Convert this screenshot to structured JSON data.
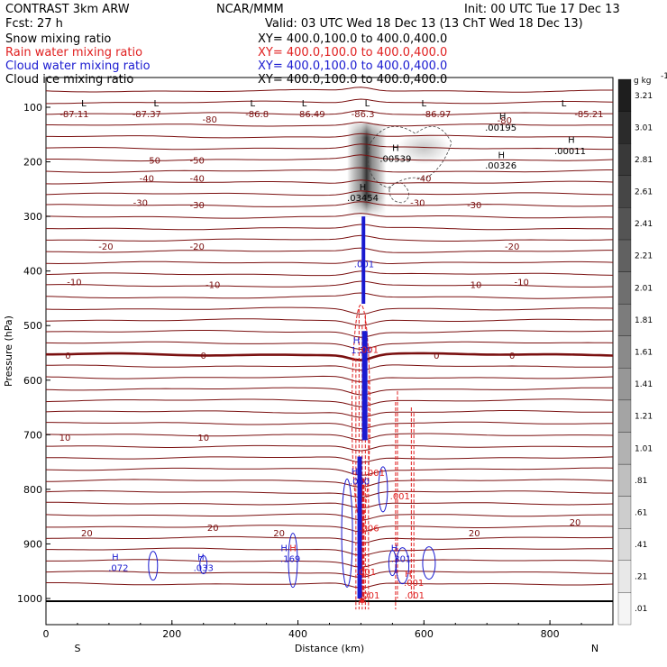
{
  "header": {
    "left_line1": "CONTRAST  3km ARW",
    "center_line1": "NCAR/MMM",
    "right_line1": "Init: 00 UTC Tue 17 Dec 13",
    "left_line2": "Fcst:    27 h",
    "right_line2": "Valid: 03 UTC Wed 18 Dec 13 (13 ChT Wed 18 Dec 13)",
    "fields": [
      {
        "name": "Snow mixing ratio",
        "xy": "XY= 400.0,100.0 to 400.0,400.0",
        "color": "#000000"
      },
      {
        "name": "Rain water mixing ratio",
        "xy": "XY= 400.0,100.0 to 400.0,400.0",
        "color": "#e02020"
      },
      {
        "name": "Cloud water mixing ratio",
        "xy": "XY= 400.0,100.0 to 400.0,400.0",
        "color": "#1a1ad0"
      },
      {
        "name": "Cloud ice mixing ratio",
        "xy": "XY= 400.0,100.0 to 400.0,400.0",
        "color": "#000000"
      }
    ]
  },
  "chart_data": {
    "type": "cross-section",
    "xlabel": "Distance (km)",
    "ylabel": "Pressure (hPa)",
    "xlim": [
      0,
      900
    ],
    "ylim": [
      1050,
      40
    ],
    "x_ticks": [
      0,
      200,
      400,
      600,
      800
    ],
    "y_ticks": [
      100,
      200,
      300,
      400,
      500,
      600,
      700,
      800,
      900,
      1000
    ],
    "x_end_labels": {
      "left": "S",
      "right": "N"
    },
    "colorbar": {
      "unit": "g kg",
      "unit_exp": "-1",
      "levels": [
        ".01",
        ".21",
        ".41",
        ".61",
        ".81",
        "1.01",
        "1.21",
        "1.41",
        "1.61",
        "1.81",
        "2.01",
        "2.21",
        "2.41",
        "2.61",
        "2.81",
        "3.01",
        "3.21"
      ]
    },
    "temperature_labels": [
      {
        "text": "-87.11",
        "x": 45,
        "p": 118
      },
      {
        "text": "-87.37",
        "x": 160,
        "p": 118
      },
      {
        "text": "-86.8",
        "x": 335,
        "p": 118
      },
      {
        "text": "-86.49",
        "x": 420,
        "p": 118
      },
      {
        "text": "-86.3",
        "x": 503,
        "p": 118
      },
      {
        "text": "-86.97",
        "x": 620,
        "p": 118
      },
      {
        "text": "-85.21",
        "x": 862,
        "p": 118
      },
      {
        "text": "-80",
        "x": 260,
        "p": 128
      },
      {
        "text": "-80",
        "x": 728,
        "p": 130
      },
      {
        "text": "-50",
        "x": 170,
        "p": 203
      },
      {
        "text": "-50",
        "x": 240,
        "p": 203
      },
      {
        "text": "-40",
        "x": 160,
        "p": 236
      },
      {
        "text": "-40",
        "x": 240,
        "p": 236
      },
      {
        "text": "-40",
        "x": 600,
        "p": 236
      },
      {
        "text": "-30",
        "x": 150,
        "p": 281
      },
      {
        "text": "-30",
        "x": 240,
        "p": 285
      },
      {
        "text": "-30",
        "x": 590,
        "p": 281
      },
      {
        "text": "-30",
        "x": 680,
        "p": 285
      },
      {
        "text": "-20",
        "x": 95,
        "p": 361
      },
      {
        "text": "-20",
        "x": 240,
        "p": 361
      },
      {
        "text": "-20",
        "x": 740,
        "p": 361
      },
      {
        "text": "-10",
        "x": 45,
        "p": 426
      },
      {
        "text": "-10",
        "x": 265,
        "p": 431
      },
      {
        "text": "-10",
        "x": 680,
        "p": 431
      },
      {
        "text": "-10",
        "x": 755,
        "p": 426
      },
      {
        "text": "0",
        "x": 35,
        "p": 561
      },
      {
        "text": "0",
        "x": 250,
        "p": 561
      },
      {
        "text": "0",
        "x": 620,
        "p": 561
      },
      {
        "text": "0",
        "x": 740,
        "p": 561
      },
      {
        "text": "10",
        "x": 30,
        "p": 711
      },
      {
        "text": "10",
        "x": 250,
        "p": 711
      },
      {
        "text": "20",
        "x": 65,
        "p": 886
      },
      {
        "text": "20",
        "x": 265,
        "p": 876
      },
      {
        "text": "20",
        "x": 370,
        "p": 886
      },
      {
        "text": "20",
        "x": 680,
        "p": 886
      },
      {
        "text": "20",
        "x": 840,
        "p": 866
      }
    ],
    "extrema_markers": [
      {
        "kind": "L",
        "x": 60,
        "p": 98
      },
      {
        "kind": "L",
        "x": 175,
        "p": 98
      },
      {
        "kind": "L",
        "x": 328,
        "p": 98
      },
      {
        "kind": "L",
        "x": 410,
        "p": 98
      },
      {
        "kind": "L",
        "x": 510,
        "p": 98
      },
      {
        "kind": "L",
        "x": 600,
        "p": 98
      },
      {
        "kind": "L",
        "x": 822,
        "p": 98
      },
      {
        "kind": "H",
        "x": 725,
        "p": 122
      },
      {
        "kind": "H",
        "x": 834,
        "p": 165
      },
      {
        "kind": "H",
        "x": 555,
        "p": 180
      },
      {
        "kind": "H",
        "x": 723,
        "p": 193
      },
      {
        "kind": "H",
        "x": 503,
        "p": 252
      }
    ],
    "snow_maxima": [
      {
        "text": ".00195",
        "x": 722,
        "p": 143
      },
      {
        "text": ".00011",
        "x": 832,
        "p": 186
      },
      {
        "text": ".00539",
        "x": 555,
        "p": 200
      },
      {
        "text": ".00326",
        "x": 722,
        "p": 212
      },
      {
        "text": ".03454",
        "x": 503,
        "p": 272
      }
    ],
    "cloud_water_labels": [
      {
        "text": "H",
        "x": 110,
        "p": 930
      },
      {
        "text": ".072",
        "x": 115,
        "p": 950
      },
      {
        "text": "H",
        "x": 246,
        "p": 930
      },
      {
        "text": ".033",
        "x": 250,
        "p": 950
      },
      {
        "text": "H",
        "x": 378,
        "p": 913
      },
      {
        "text": ".169",
        "x": 388,
        "p": 933
      },
      {
        "text": ".001",
        "x": 505,
        "p": 393
      },
      {
        "text": "H",
        "x": 493,
        "p": 533
      },
      {
        "text": "1.28",
        "x": 500,
        "p": 551
      },
      {
        "text": "H",
        "x": 490,
        "p": 773
      },
      {
        "text": ".060",
        "x": 498,
        "p": 791
      },
      {
        "text": "H",
        "x": 553,
        "p": 913
      },
      {
        "text": ".301",
        "x": 564,
        "p": 933
      }
    ],
    "rain_labels": [
      {
        "text": ".001",
        "x": 512,
        "p": 550
      },
      {
        "text": "H",
        "x": 392,
        "p": 913
      },
      {
        "text": ".001",
        "x": 522,
        "p": 775
      },
      {
        "text": ".001",
        "x": 562,
        "p": 818
      },
      {
        "text": ".006",
        "x": 513,
        "p": 877
      },
      {
        "text": ".001",
        "x": 508,
        "p": 957
      },
      {
        "text": "H",
        "x": 575,
        "p": 960
      },
      {
        "text": ".001",
        "x": 584,
        "p": 977
      },
      {
        "text": ".001",
        "x": 514,
        "p": 1000
      },
      {
        "text": ".001",
        "x": 585,
        "p": 1000
      }
    ]
  }
}
